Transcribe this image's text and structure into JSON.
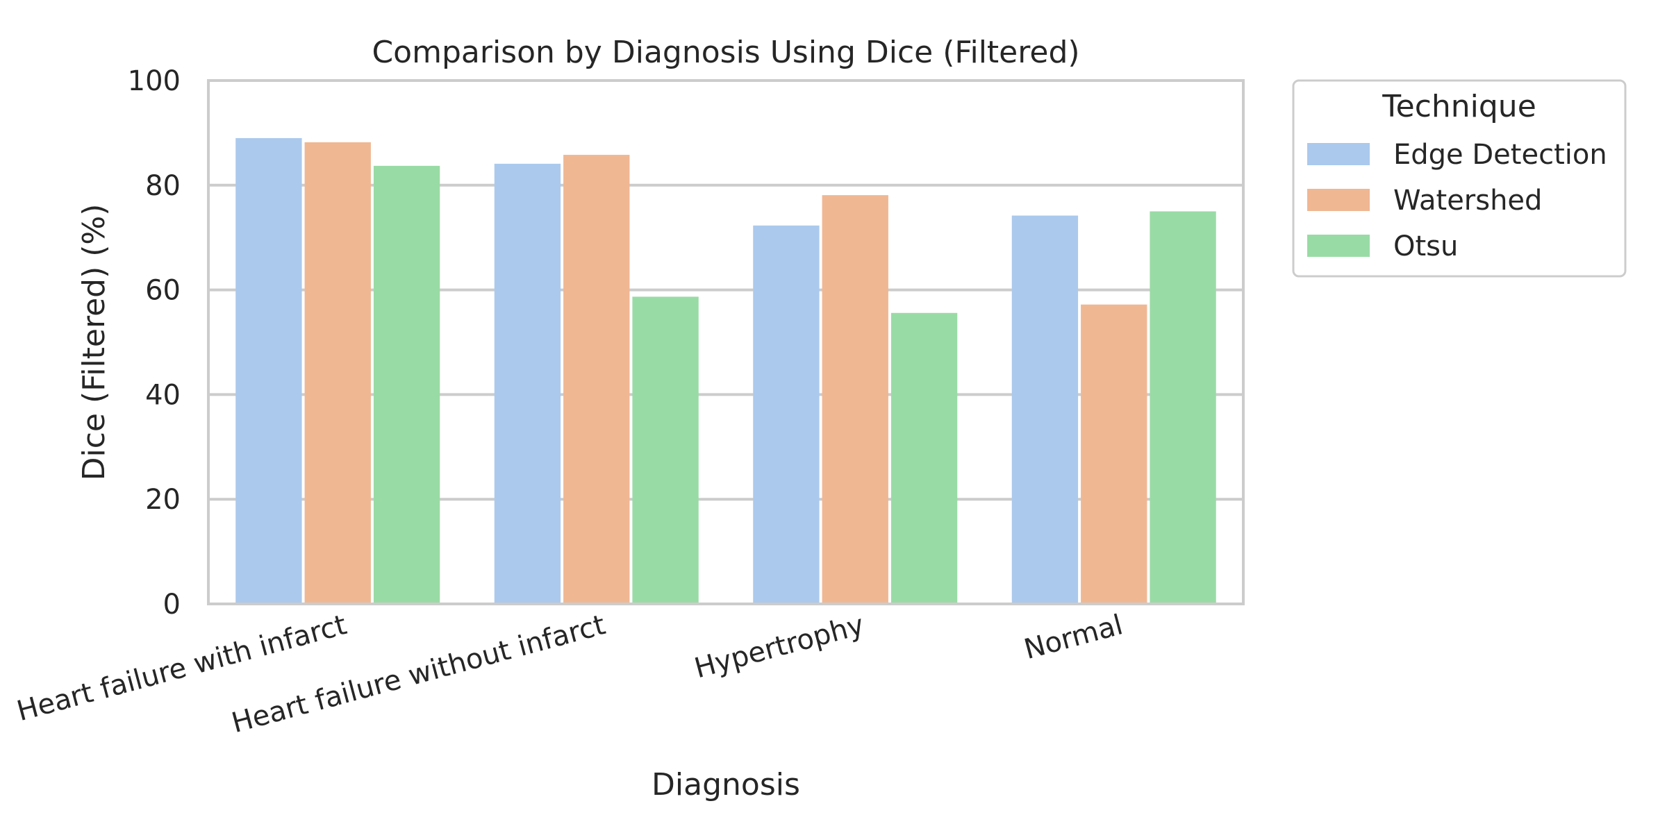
{
  "chart_data": {
    "type": "bar",
    "title": "Comparison by Diagnosis Using Dice (Filtered)",
    "xlabel": "Diagnosis",
    "ylabel": "Dice (Filtered) (%)",
    "ylim": [
      0,
      100
    ],
    "yticks": [
      "0",
      "20",
      "40",
      "60",
      "80",
      "100"
    ],
    "grid": "horizontal",
    "legend": {
      "title": "Technique",
      "placement": "outside-right"
    },
    "categories": [
      "Heart failure with infarct",
      "Heart failure without infarct",
      "Hypertrophy",
      "Normal"
    ],
    "series": [
      {
        "name": "Edge Detection",
        "color": "#abc9ed",
        "values": [
          89.0,
          84.1,
          72.3,
          74.2
        ]
      },
      {
        "name": "Watershed",
        "color": "#f0b793",
        "values": [
          88.2,
          85.8,
          78.1,
          57.2
        ]
      },
      {
        "name": "Otsu",
        "color": "#99dba5",
        "values": [
          83.7,
          58.7,
          55.6,
          75.0
        ]
      }
    ]
  }
}
